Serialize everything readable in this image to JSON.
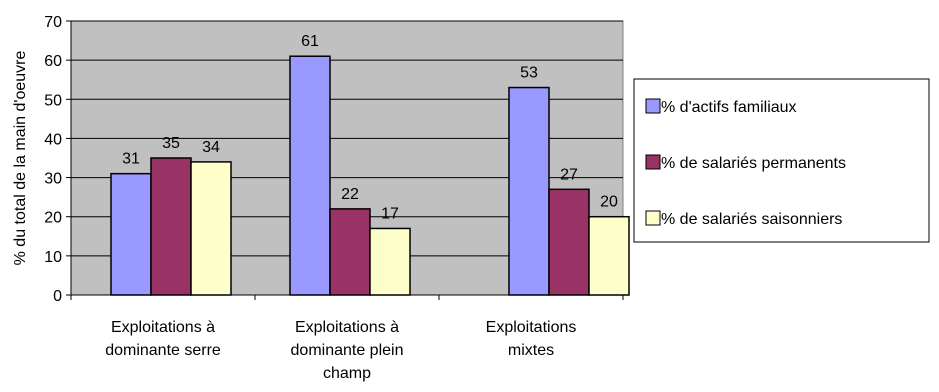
{
  "chart_data": {
    "type": "bar",
    "title": "",
    "xlabel": "",
    "ylabel": "% du total de la main d'oeuvre",
    "ylim": [
      0,
      70
    ],
    "yticks": [
      0,
      10,
      20,
      30,
      40,
      50,
      60,
      70
    ],
    "grid": true,
    "legend_position": "right",
    "categories": [
      [
        "Exploitations à",
        "dominante serre"
      ],
      [
        "Exploitations à",
        "dominante plein",
        "champ"
      ],
      [
        "Exploitations",
        "mixtes"
      ]
    ],
    "series": [
      {
        "name": "% d'actifs familiaux",
        "values": [
          31,
          61,
          53
        ],
        "color": "#9999ff"
      },
      {
        "name": "% de salariés permanents",
        "values": [
          35,
          22,
          27
        ],
        "color": "#993366"
      },
      {
        "name": "% de salariés saisonniers",
        "values": [
          34,
          17,
          20
        ],
        "color": "#ffffcc"
      }
    ],
    "plot_background": "#c0c0c0"
  }
}
